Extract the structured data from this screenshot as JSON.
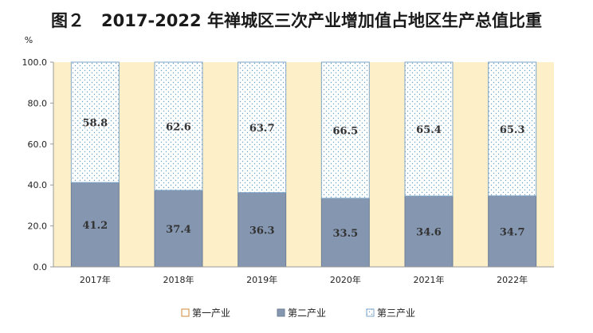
{
  "chart_data": {
    "type": "bar",
    "stacked": true,
    "title": "图２　2017-2022 年禅城区三次产业增加值占地区生产总值比重",
    "ylabel": "%",
    "ylim": [
      0,
      100
    ],
    "yticks": [
      "0.0",
      "20.0",
      "40.0",
      "60.0",
      "80.0",
      "100.0"
    ],
    "categories": [
      "2017年",
      "2018年",
      "2019年",
      "2020年",
      "2021年",
      "2022年"
    ],
    "series": [
      {
        "name": "第一产业",
        "values": [
          0,
          0,
          0,
          0,
          0,
          0
        ],
        "color": "#ffffff",
        "pattern": "none",
        "show_labels": false
      },
      {
        "name": "第二产业",
        "values": [
          41.2,
          37.4,
          36.3,
          33.5,
          34.6,
          34.7
        ],
        "color": "#8496b0",
        "pattern": "solid",
        "show_labels": true
      },
      {
        "name": "第三产业",
        "values": [
          58.8,
          62.6,
          63.7,
          66.5,
          65.4,
          65.3
        ],
        "color": "#ffffff",
        "pattern": "dots",
        "show_labels": true
      }
    ],
    "plot_background": "#fdf0c8",
    "grid": false,
    "legend_position": "bottom"
  }
}
